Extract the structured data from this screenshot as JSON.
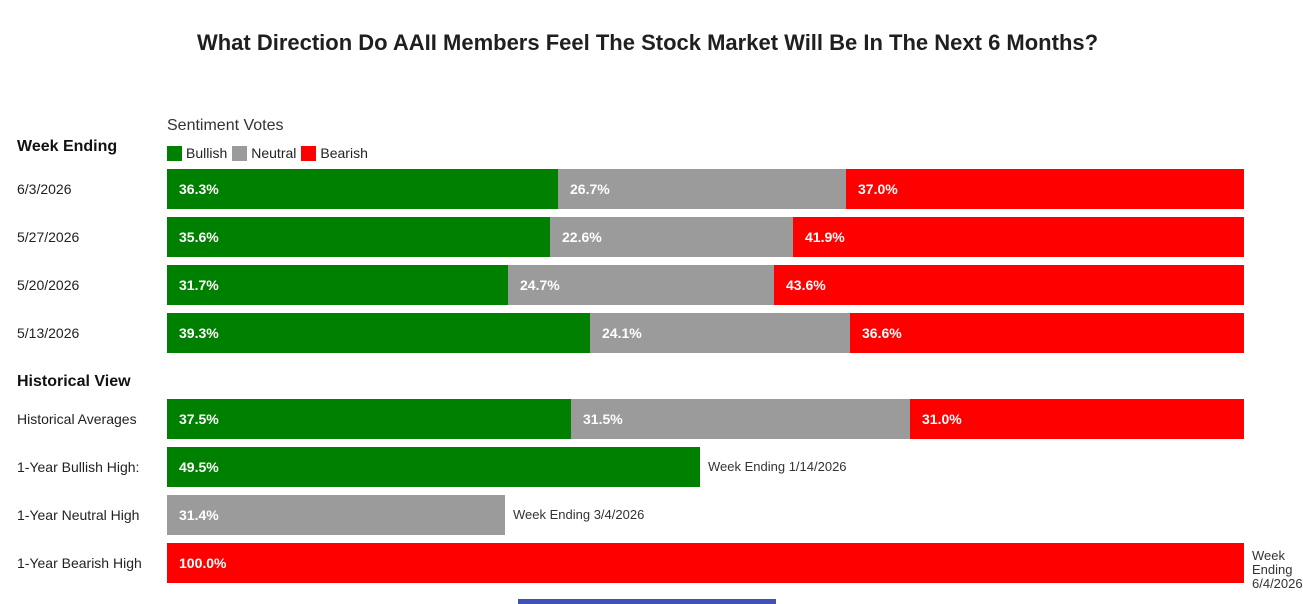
{
  "title": "What Direction Do AAII Members Feel The Stock Market Will Be In The Next 6 Months?",
  "colors": {
    "bullish": "#008000",
    "neutral": "#9b9b9b",
    "bearish": "#ff0000",
    "accent": "#3f51b5"
  },
  "legend": {
    "title": "Sentiment Votes",
    "items": [
      {
        "label": "Bullish",
        "color": "#008000"
      },
      {
        "label": "Neutral",
        "color": "#9b9b9b"
      },
      {
        "label": "Bearish",
        "color": "#ff0000"
      }
    ]
  },
  "sections": {
    "weekly": "Week Ending",
    "historical": "Historical View"
  },
  "chart_data": {
    "type": "bar",
    "orientation": "horizontal",
    "stacked": true,
    "categories": [
      "6/3/2026",
      "5/27/2026",
      "5/20/2026",
      "5/13/2026",
      "Historical Averages",
      "1-Year Bullish High:",
      "1-Year Neutral High",
      "1-Year Bearish High"
    ],
    "series": [
      {
        "name": "Bullish",
        "values": [
          36.3,
          35.6,
          31.7,
          39.3,
          37.5,
          49.5,
          null,
          null
        ]
      },
      {
        "name": "Neutral",
        "values": [
          26.7,
          22.6,
          24.7,
          24.1,
          31.5,
          null,
          31.4,
          null
        ]
      },
      {
        "name": "Bearish",
        "values": [
          37.0,
          41.9,
          43.6,
          36.6,
          31.0,
          null,
          null,
          100.0
        ]
      }
    ],
    "labels": [
      [
        "36.3%",
        "26.7%",
        "37.0%"
      ],
      [
        "35.6%",
        "22.6%",
        "41.9%"
      ],
      [
        "31.7%",
        "24.7%",
        "43.6%"
      ],
      [
        "39.3%",
        "24.1%",
        "36.6%"
      ],
      [
        "37.5%",
        "31.5%",
        "31.0%"
      ],
      [
        "49.5%"
      ],
      [
        "31.4%"
      ],
      [
        "100.0%"
      ]
    ],
    "notes": [
      null,
      null,
      null,
      null,
      null,
      "Week Ending 1/14/2026",
      "Week Ending 3/4/2026",
      "Week Ending 6/4/2026"
    ],
    "xlim": [
      0,
      100
    ],
    "grid": false,
    "legend_position": "top-left"
  }
}
